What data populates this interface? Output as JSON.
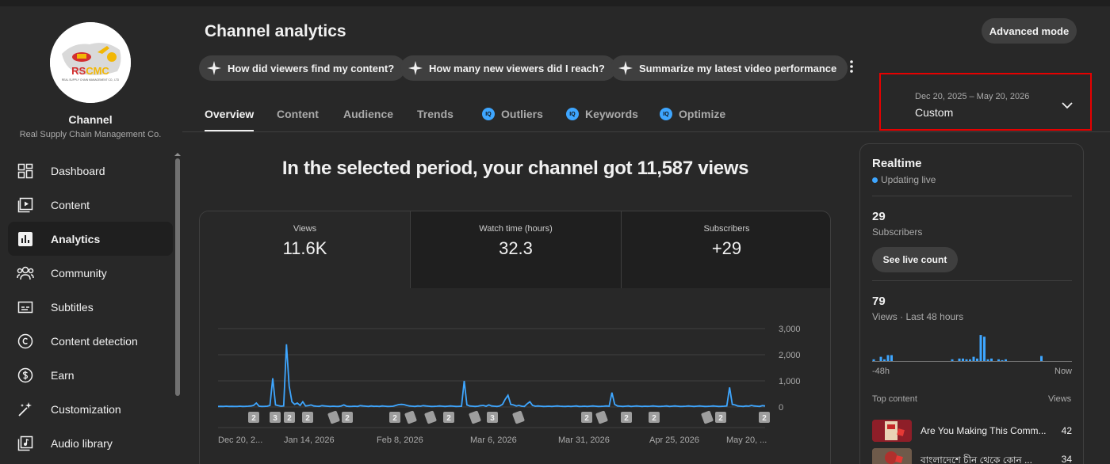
{
  "channel": {
    "title": "Channel",
    "name": "Real Supply Chain Management Co.",
    "logo_text": "RSCMC",
    "logo_subtext": "REAL SUPPLY CHAIN MANAGEMENT CO., LTD"
  },
  "sidebar": {
    "items": [
      {
        "label": "Dashboard",
        "icon": "dashboard-icon"
      },
      {
        "label": "Content",
        "icon": "content-icon"
      },
      {
        "label": "Analytics",
        "icon": "analytics-icon",
        "active": true
      },
      {
        "label": "Community",
        "icon": "community-icon"
      },
      {
        "label": "Subtitles",
        "icon": "subtitles-icon"
      },
      {
        "label": "Content detection",
        "icon": "copyright-icon"
      },
      {
        "label": "Earn",
        "icon": "dollar-icon"
      },
      {
        "label": "Customization",
        "icon": "magic-wand-icon"
      },
      {
        "label": "Audio library",
        "icon": "music-note-icon"
      }
    ]
  },
  "header": {
    "title": "Channel analytics",
    "advanced_mode": "Advanced mode",
    "chips": [
      "How did viewers find my content?",
      "How many new viewers did I reach?",
      "Summarize my latest video performance"
    ],
    "tabs": [
      {
        "label": "Overview",
        "active": true
      },
      {
        "label": "Content"
      },
      {
        "label": "Audience"
      },
      {
        "label": "Trends"
      },
      {
        "label": "Outliers",
        "badge": true
      },
      {
        "label": "Keywords",
        "badge": true
      },
      {
        "label": "Optimize",
        "badge": true
      }
    ],
    "date_range": {
      "range": "Dec 20, 2025 – May 20, 2026",
      "label": "Custom"
    }
  },
  "overview": {
    "headline": "In the selected period, your channel got 11,587 views",
    "metrics": [
      {
        "label": "Views",
        "value": "11.6K",
        "selected": true
      },
      {
        "label": "Watch time (hours)",
        "value": "32.3"
      },
      {
        "label": "Subscribers",
        "value": "+29"
      }
    ]
  },
  "chart_data": {
    "type": "line",
    "title": "",
    "xlabel": "",
    "ylabel": "",
    "ylim": [
      0,
      3000
    ],
    "y_ticks": [
      "3,000",
      "2,000",
      "1,000",
      "0"
    ],
    "x_tick_labels": [
      "Dec 20, 2...",
      "Jan 14, 2026",
      "Feb 8, 2026",
      "Mar 6, 2026",
      "Mar 31, 2026",
      "Apr 25, 2026",
      "May 20, ..."
    ],
    "grid": true,
    "color": "#3ea6ff",
    "series": [
      {
        "values": [
          20,
          25,
          20,
          30,
          20,
          25,
          20,
          20,
          30,
          20,
          25,
          30,
          40,
          60,
          150,
          30,
          20,
          25,
          30,
          60,
          1100,
          80,
          50,
          30,
          40,
          2400,
          800,
          200,
          100,
          150,
          60,
          200,
          40,
          50,
          80,
          40,
          30,
          25,
          50,
          40,
          30,
          20,
          30,
          25,
          20,
          40,
          80,
          30,
          20,
          25,
          30,
          20,
          50,
          40,
          30,
          20,
          40,
          25,
          30,
          20,
          40,
          30,
          20,
          25,
          30,
          60,
          90,
          100,
          90,
          60,
          40,
          30,
          20,
          40,
          30,
          50,
          40,
          30,
          20,
          25,
          30,
          40,
          30,
          20,
          30,
          40,
          30,
          20,
          25,
          30,
          1000,
          80,
          40,
          30,
          20,
          30,
          50,
          60,
          30,
          80,
          40,
          30,
          20,
          40,
          100,
          300,
          450,
          100,
          80,
          40,
          60,
          30,
          20,
          120,
          200,
          60,
          30,
          40,
          30,
          20,
          25,
          30,
          20,
          30,
          40,
          30,
          25,
          20,
          30,
          20,
          30,
          40,
          20,
          25,
          30,
          20,
          30,
          40,
          30,
          20,
          25,
          30,
          40,
          30,
          550,
          100,
          40,
          30,
          20,
          30,
          40,
          20,
          30,
          40,
          30,
          20,
          30,
          25,
          30,
          40,
          30,
          20,
          25,
          30,
          40,
          20,
          30,
          40,
          30,
          20,
          25,
          30,
          40,
          30,
          20,
          30,
          40,
          30,
          20,
          25,
          30,
          40,
          30,
          20,
          25,
          30,
          40,
          750,
          100,
          80,
          40,
          30,
          20,
          40,
          30,
          60,
          40,
          30,
          20,
          50,
          40
        ]
      }
    ],
    "markers": [
      "2",
      "3",
      "2",
      "2",
      "shorts",
      "2",
      "2",
      "shorts",
      "shorts",
      "2",
      "shorts",
      "3",
      "shorts",
      "2",
      "shorts",
      "2",
      "2",
      "shorts",
      "2",
      "2",
      "shorts"
    ]
  },
  "realtime": {
    "title": "Realtime",
    "status": "Updating live",
    "subscribers_count": "29",
    "subscribers_label": "Subscribers",
    "live_count_button": "See live count",
    "views_count": "79",
    "views_label": "Views · Last 48 hours",
    "axis_start": "-48h",
    "axis_end": "Now",
    "bars": [
      3,
      0,
      6,
      3,
      8,
      8,
      0,
      0,
      0,
      0,
      0,
      0,
      0,
      0,
      0,
      0,
      0,
      0,
      0,
      0,
      0,
      0,
      3,
      0,
      4,
      4,
      3,
      3,
      6,
      4,
      32,
      30,
      3,
      4,
      0,
      3,
      2,
      3,
      0,
      0,
      0,
      0,
      0,
      0,
      0,
      0,
      0,
      7,
      0,
      0,
      0,
      0,
      0,
      0,
      0,
      0
    ],
    "top_content_label": "Top content",
    "views_column": "Views",
    "top_content": [
      {
        "title": "Are You Making This Comm...",
        "views": "42"
      },
      {
        "title": "বাংলাদেশে চীন থেকে কোন ...",
        "views": "34"
      }
    ]
  }
}
